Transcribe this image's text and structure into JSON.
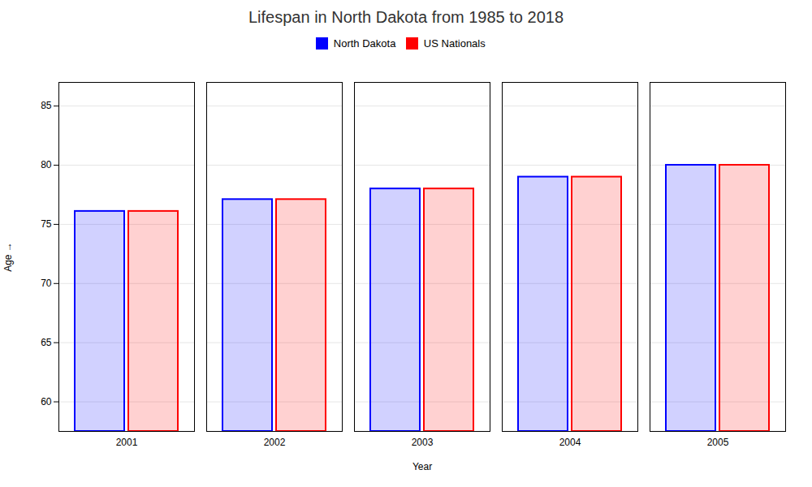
{
  "chart_data": {
    "type": "bar",
    "title": "Lifespan in North Dakota from 1985 to 2018",
    "xlabel": "Year",
    "ylabel": "Age",
    "categories": [
      "2001",
      "2002",
      "2003",
      "2004",
      "2005"
    ],
    "series": [
      {
        "name": "North Dakota",
        "color": "#0000ff",
        "values": [
          76.1,
          77.1,
          78.0,
          79.0,
          80.0
        ]
      },
      {
        "name": "US Nationals",
        "color": "#ff0000",
        "values": [
          76.1,
          77.1,
          78.0,
          79.0,
          80.0
        ]
      }
    ],
    "ylim": [
      57.5,
      87
    ],
    "yticks": [
      60,
      65,
      70,
      75,
      80,
      85
    ],
    "grid": true,
    "legend": "top"
  }
}
